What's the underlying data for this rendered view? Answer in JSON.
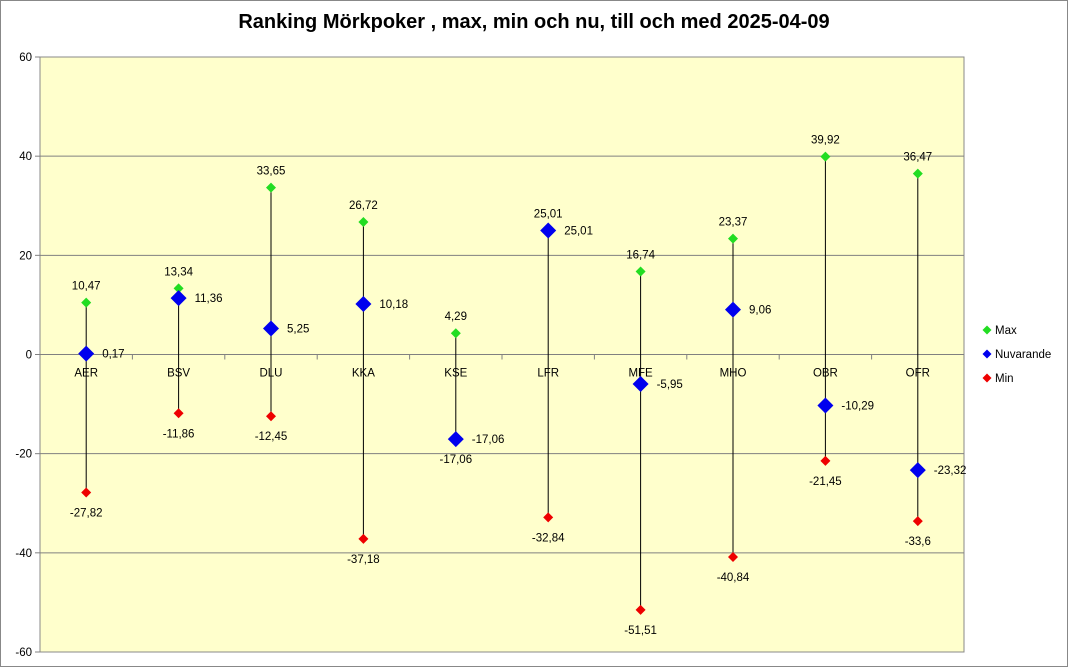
{
  "chart_data": {
    "type": "scatter",
    "title": "Ranking Mörkpoker , max, min och nu, till och med 2025-04-09",
    "categories": [
      "AER",
      "BSV",
      "DLU",
      "KKA",
      "KSE",
      "LFR",
      "MFE",
      "MHO",
      "OBR",
      "OFR"
    ],
    "series": [
      {
        "name": "Max",
        "color": "#22dd22",
        "values": [
          10.47,
          13.34,
          33.65,
          26.72,
          4.29,
          25.01,
          16.74,
          23.37,
          39.92,
          36.47
        ],
        "labels": [
          "10,47",
          "13,34",
          "33,65",
          "26,72",
          "4,29",
          "25,01",
          "16,74",
          "23,37",
          "39,92",
          "36,47"
        ]
      },
      {
        "name": "Nuvarande",
        "color": "#0000ee",
        "values": [
          0.17,
          11.36,
          5.25,
          10.18,
          -17.06,
          25.01,
          -5.95,
          9.06,
          -10.29,
          -23.32
        ],
        "labels": [
          "0,17",
          "11,36",
          "5,25",
          "10,18",
          "-17,06",
          "25,01",
          "-5,95",
          "9,06",
          "-10,29",
          "-23,32"
        ]
      },
      {
        "name": "Min",
        "color": "#ee0000",
        "values": [
          -27.82,
          -11.86,
          -12.45,
          -37.18,
          -17.06,
          -32.84,
          -51.51,
          -40.84,
          -21.45,
          -33.6
        ],
        "labels": [
          "-27,82",
          "-11,86",
          "-12,45",
          "-37,18",
          "-17,06",
          "-32,84",
          "-51,51",
          "-40,84",
          "-21,45",
          "-33,6"
        ]
      }
    ],
    "ylim": [
      -60,
      60
    ],
    "yticks": [
      -60,
      -40,
      -20,
      0,
      20,
      40,
      60
    ],
    "grid": true,
    "legend": "right",
    "plot_background": "#ffffcc"
  }
}
